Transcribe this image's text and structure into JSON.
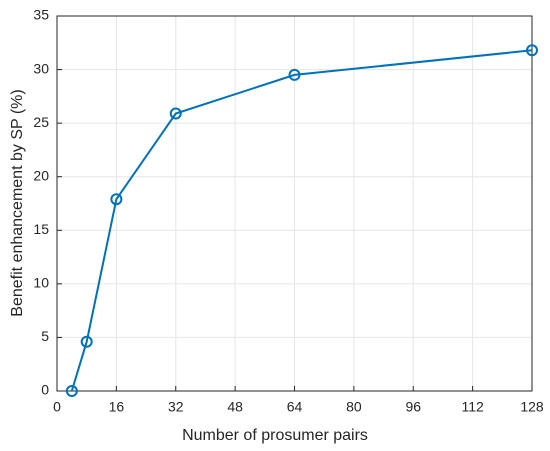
{
  "chart_data": {
    "type": "line",
    "xlabel": "Number of prosumer pairs",
    "ylabel": "Benefit enhancement by SP (%)",
    "x": [
      4,
      8,
      16,
      32,
      64,
      128
    ],
    "series": [
      {
        "color": "#0072bd",
        "values": [
          0,
          4.6,
          17.9,
          25.9,
          29.5,
          31.8
        ]
      }
    ],
    "xlim": [
      0,
      128
    ],
    "xticks": [
      0,
      16,
      32,
      48,
      64,
      80,
      96,
      112,
      128
    ],
    "ylim": [
      0,
      35
    ],
    "yticks": [
      0,
      5,
      10,
      15,
      20,
      25,
      30,
      35
    ],
    "grid": true,
    "marker": "circle"
  }
}
